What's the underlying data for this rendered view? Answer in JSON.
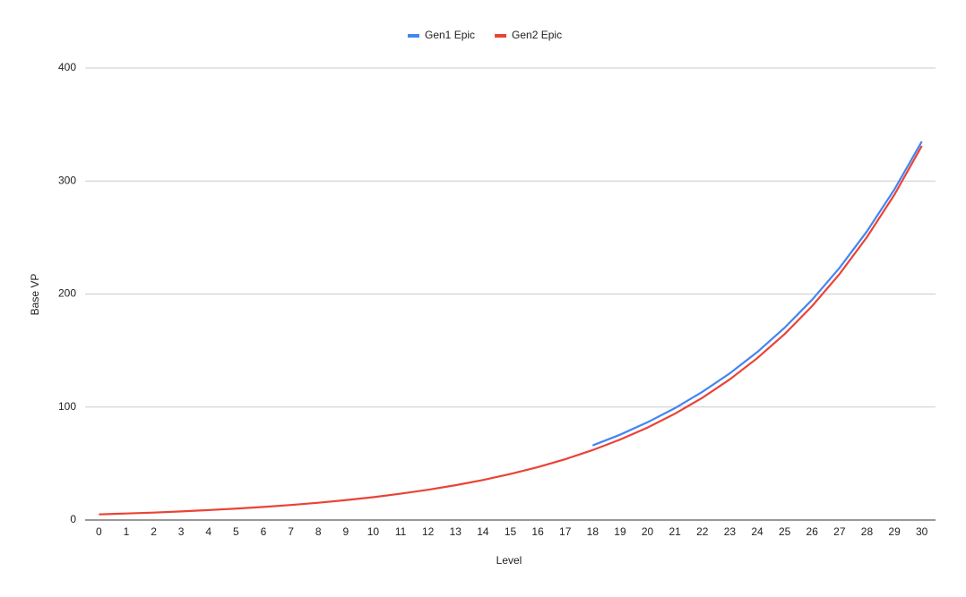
{
  "chart_data": {
    "type": "line",
    "x_label": "Level",
    "y_label": "Base VP",
    "categories": [
      "0",
      "1",
      "2",
      "3",
      "4",
      "5",
      "6",
      "7",
      "8",
      "9",
      "10",
      "11",
      "12",
      "13",
      "14",
      "15",
      "16",
      "17",
      "18",
      "19",
      "20",
      "21",
      "22",
      "23",
      "24",
      "25",
      "26",
      "27",
      "28",
      "29",
      "30"
    ],
    "series": [
      {
        "name": "Gen1 Epic",
        "color": "#4285f4",
        "values": [
          null,
          null,
          null,
          null,
          null,
          null,
          null,
          null,
          null,
          null,
          null,
          null,
          null,
          null,
          null,
          null,
          null,
          null,
          66,
          75.5,
          86.5,
          99,
          113.4,
          129.8,
          148.6,
          170.2,
          194.9,
          223.1,
          255.5,
          292.5,
          335
        ]
      },
      {
        "name": "Gen2 Epic",
        "color": "#ea4335",
        "values": [
          5,
          5.8,
          6.6,
          7.6,
          8.8,
          10.1,
          11.6,
          13.3,
          15.3,
          17.6,
          20.2,
          23.3,
          26.8,
          30.8,
          35.4,
          40.7,
          46.8,
          53.8,
          61.9,
          71.2,
          81.8,
          94.1,
          108.2,
          124.5,
          143.2,
          164.6,
          189.3,
          217.7,
          250.4,
          287.9,
          331.1
        ]
      }
    ],
    "ylim": [
      0,
      400
    ],
    "yticks": [
      0,
      100,
      200,
      300,
      400
    ],
    "grid": true,
    "legend": "top"
  }
}
